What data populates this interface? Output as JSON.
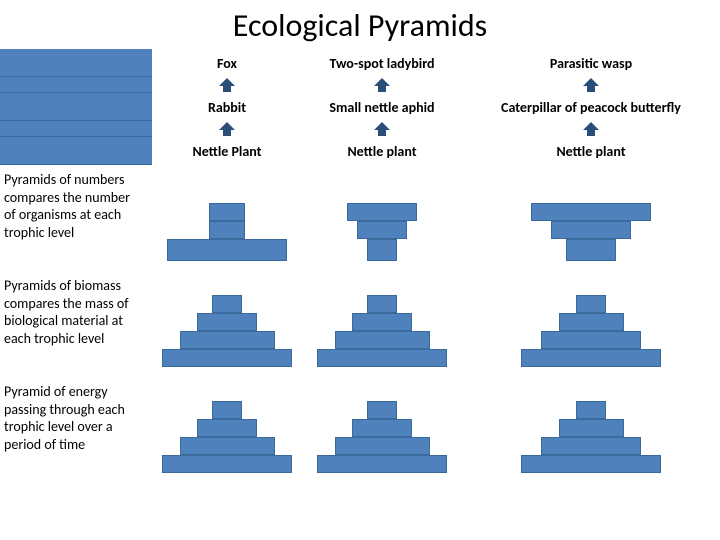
{
  "title": "Ecological Pyramids",
  "chain_color": "#4f81bd",
  "tier_fill": "#4f81bd",
  "tier_border": "#3b6a9c",
  "arrow_fill": "#2a4e78",
  "columns": [
    {
      "top": "Fox",
      "mid": "Rabbit",
      "bot": "Nettle Plant"
    },
    {
      "top": "Two-spot ladybird",
      "mid": "Small nettle aphid",
      "bot": "Nettle plant"
    },
    {
      "top": "Parasitic wasp",
      "mid": "Caterpillar of peacock butterfly",
      "bot": "Nettle plant"
    }
  ],
  "rows": [
    {
      "desc": "Pyramids of numbers compares the number of organisms at each trophic level",
      "pyramids": [
        {
          "tiers": [
            {
              "w": 36,
              "h": 18
            },
            {
              "w": 36,
              "h": 18
            },
            {
              "w": 120,
              "h": 22
            }
          ]
        },
        {
          "tiers": [
            {
              "w": 70,
              "h": 18
            },
            {
              "w": 50,
              "h": 18
            },
            {
              "w": 30,
              "h": 22
            }
          ]
        },
        {
          "tiers": [
            {
              "w": 120,
              "h": 18
            },
            {
              "w": 80,
              "h": 18
            },
            {
              "w": 50,
              "h": 22
            }
          ]
        }
      ]
    },
    {
      "desc": "Pyramids of biomass compares the mass of biological material at each trophic level",
      "pyramids": [
        {
          "tiers": [
            {
              "w": 30,
              "h": 18
            },
            {
              "w": 60,
              "h": 18
            },
            {
              "w": 95,
              "h": 18
            },
            {
              "w": 130,
              "h": 18
            }
          ]
        },
        {
          "tiers": [
            {
              "w": 30,
              "h": 18
            },
            {
              "w": 60,
              "h": 18
            },
            {
              "w": 95,
              "h": 18
            },
            {
              "w": 130,
              "h": 18
            }
          ]
        },
        {
          "tiers": [
            {
              "w": 30,
              "h": 18
            },
            {
              "w": 65,
              "h": 18
            },
            {
              "w": 100,
              "h": 18
            },
            {
              "w": 140,
              "h": 18
            }
          ]
        }
      ]
    },
    {
      "desc": "Pyramid of energy passing through each trophic level over a period of time",
      "pyramids": [
        {
          "tiers": [
            {
              "w": 30,
              "h": 18
            },
            {
              "w": 60,
              "h": 18
            },
            {
              "w": 95,
              "h": 18
            },
            {
              "w": 130,
              "h": 18
            }
          ]
        },
        {
          "tiers": [
            {
              "w": 30,
              "h": 18
            },
            {
              "w": 60,
              "h": 18
            },
            {
              "w": 95,
              "h": 18
            },
            {
              "w": 130,
              "h": 18
            }
          ]
        },
        {
          "tiers": [
            {
              "w": 30,
              "h": 18
            },
            {
              "w": 65,
              "h": 18
            },
            {
              "w": 100,
              "h": 18
            },
            {
              "w": 140,
              "h": 18
            }
          ]
        }
      ]
    }
  ]
}
